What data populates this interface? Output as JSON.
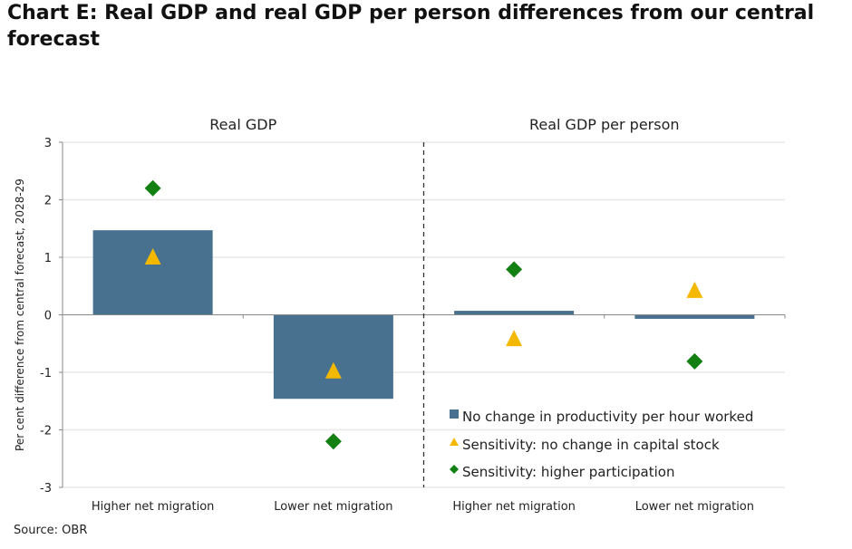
{
  "title": "Chart E: Real GDP and real GDP per person differences from our central forecast",
  "source": "Source: OBR",
  "chart_data": {
    "type": "bar",
    "ylabel": "Per cent difference from central forecast, 2028-29",
    "ylim": [
      -3,
      3
    ],
    "yticks": [
      "3",
      "2",
      "1",
      "0",
      "-1",
      "-2",
      "-3"
    ],
    "grid": true,
    "panels": [
      "Real GDP",
      "Real GDP per person"
    ],
    "categories": [
      "Higher net migration",
      "Lower net migration",
      "Higher net migration",
      "Lower net migration"
    ],
    "series": [
      {
        "name": "No change in productivity per hour worked",
        "kind": "bar",
        "color": "#48708f",
        "values": [
          1.47,
          -1.46,
          0.07,
          -0.07
        ]
      },
      {
        "name": "Sensitivity: no change in capital stock",
        "kind": "triangle",
        "color": "#f5b800",
        "values": [
          1.0,
          -0.98,
          -0.42,
          0.42
        ]
      },
      {
        "name": "Sensitivity: higher participation",
        "kind": "diamond",
        "color": "#138013",
        "values": [
          2.2,
          -2.2,
          0.79,
          -0.81
        ]
      }
    ],
    "legend_position": "bottom-right"
  }
}
